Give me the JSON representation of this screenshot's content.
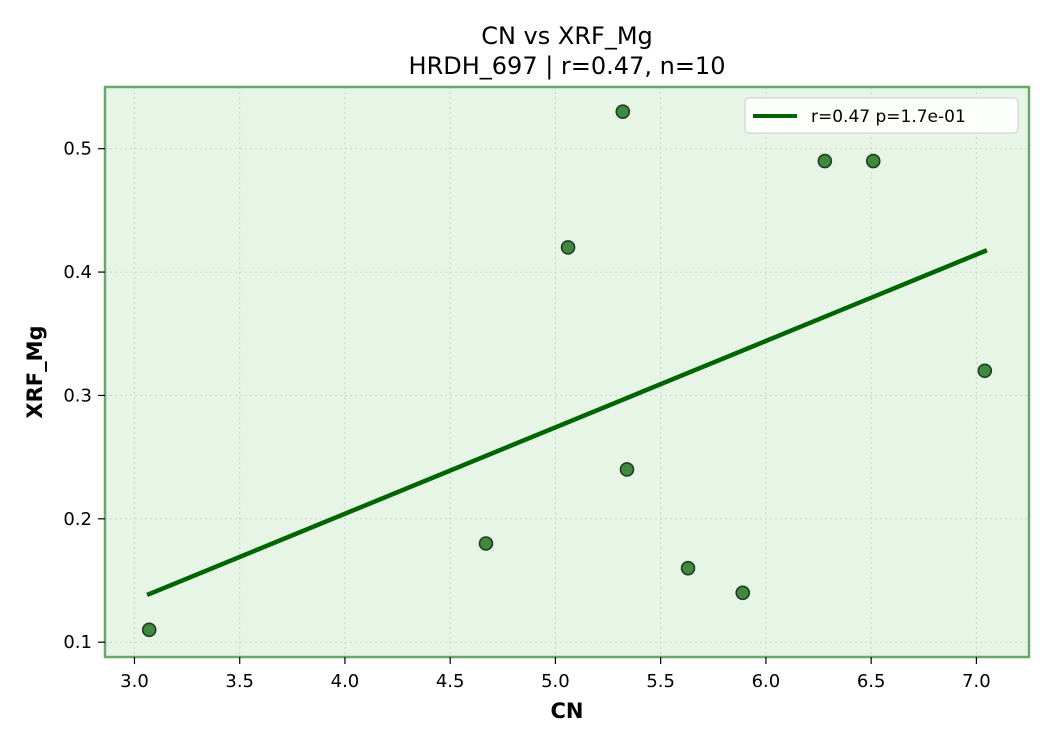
{
  "chart_data": {
    "type": "scatter",
    "title": "CN vs XRF_Mg",
    "subtitle": "HRDH_697 | r=0.47, n=10",
    "xlabel": "CN",
    "ylabel": "XRF_Mg",
    "xlim": [
      2.86,
      7.25
    ],
    "ylim": [
      0.088,
      0.55
    ],
    "xticks": [
      "3.0",
      "3.5",
      "4.0",
      "4.5",
      "5.0",
      "5.5",
      "6.0",
      "6.5",
      "7.0"
    ],
    "yticks": [
      "0.1",
      "0.2",
      "0.3",
      "0.4",
      "0.5"
    ],
    "grid": true,
    "legend_position": "top-right",
    "series": [
      {
        "kind": "points",
        "color": "#3f8a3f",
        "points": [
          {
            "x": 3.07,
            "y": 0.11
          },
          {
            "x": 4.67,
            "y": 0.18
          },
          {
            "x": 5.06,
            "y": 0.42
          },
          {
            "x": 5.32,
            "y": 0.53
          },
          {
            "x": 5.34,
            "y": 0.24
          },
          {
            "x": 5.63,
            "y": 0.16
          },
          {
            "x": 5.89,
            "y": 0.14
          },
          {
            "x": 6.28,
            "y": 0.49
          },
          {
            "x": 6.51,
            "y": 0.49
          },
          {
            "x": 7.04,
            "y": 0.32
          }
        ]
      },
      {
        "kind": "fit-line",
        "name": "r=0.47  p=1.7e-01",
        "color": "#006400",
        "line": [
          {
            "x": 3.07,
            "y": 0.139
          },
          {
            "x": 7.04,
            "y": 0.417
          }
        ]
      }
    ]
  }
}
